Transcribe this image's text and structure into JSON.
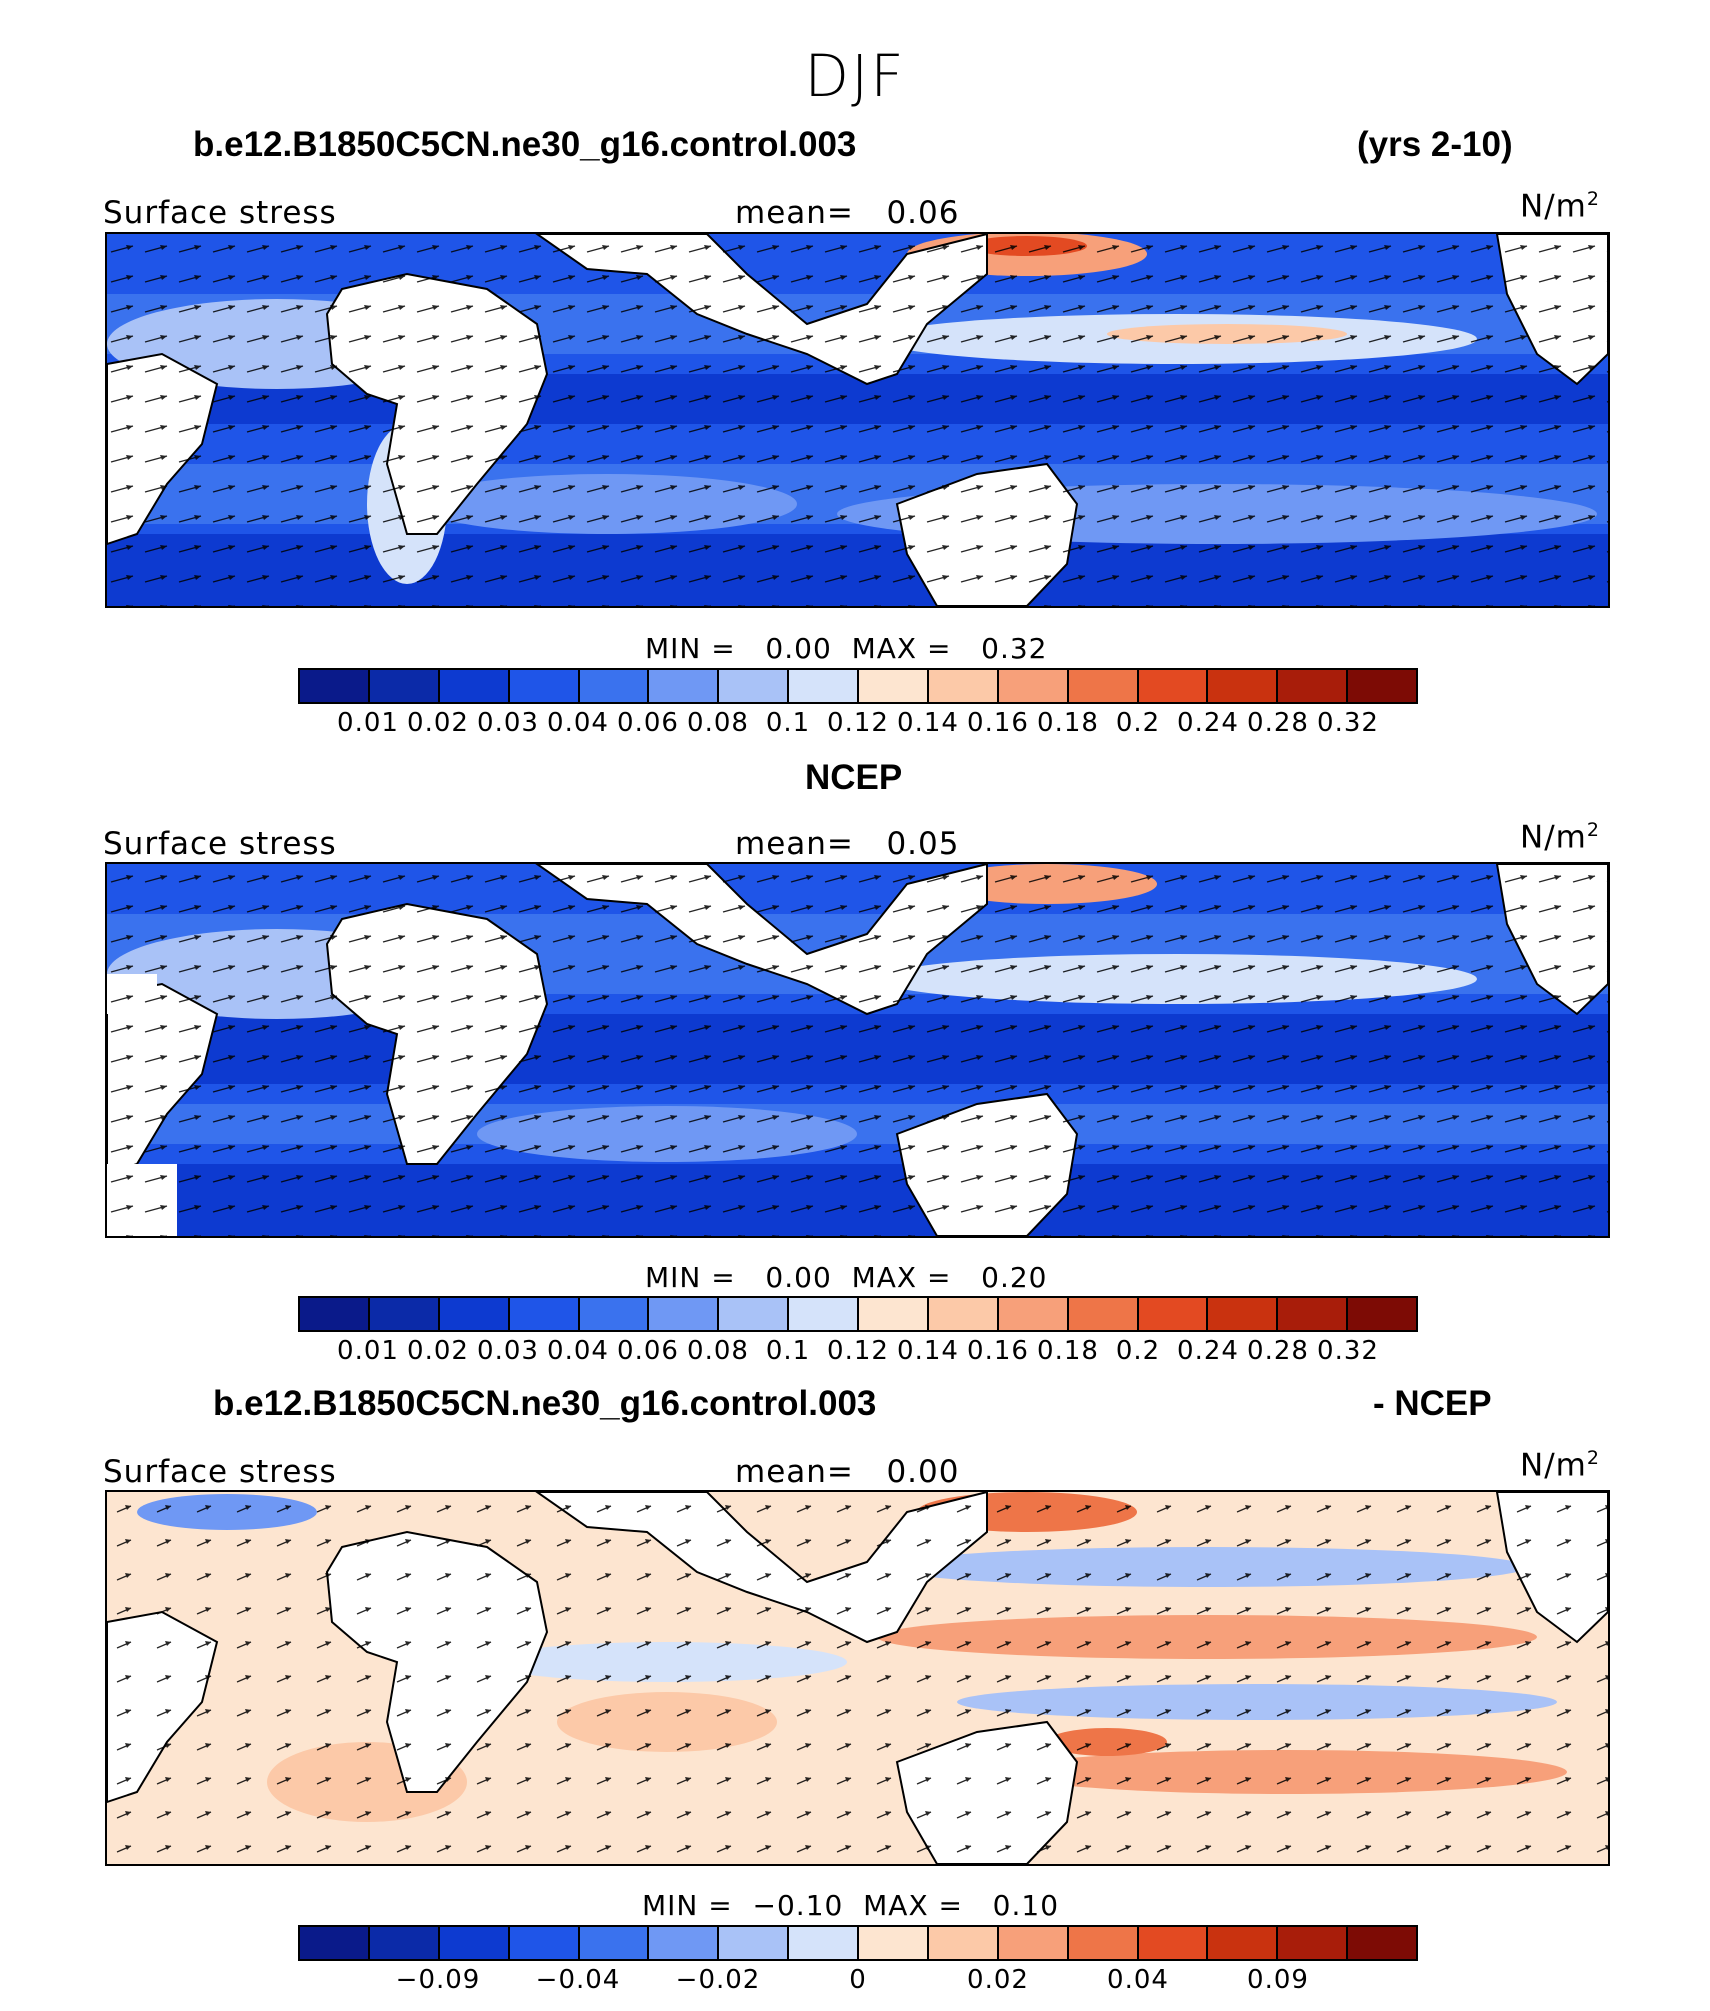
{
  "title": "DJF",
  "panel1": {
    "case_label": "b.e12.B1850C5CN.ne30_g16.control.003",
    "years": "(yrs 2-10)",
    "field": "Surface stress",
    "mean_label": "mean=   0.06",
    "units_base": "N/m",
    "units_exp": "2",
    "minmax": "MIN =   0.00  MAX =   0.32"
  },
  "panel2": {
    "case_label": "NCEP",
    "field": "Surface stress",
    "mean_label": "mean=   0.05",
    "units_base": "N/m",
    "units_exp": "2",
    "minmax": "MIN =   0.00  MAX =   0.20"
  },
  "panel3": {
    "case_label": "b.e12.B1850C5CN.ne30_g16.control.003",
    "suffix": "- NCEP",
    "field": "Surface stress",
    "mean_label": "mean=   0.00",
    "units_base": "N/m",
    "units_exp": "2",
    "minmax": "MIN =  −0.10  MAX =   0.10"
  },
  "colorbar_abs": {
    "colors": [
      "#0a1a8a",
      "#0b2aa8",
      "#0d3ad0",
      "#1f55e8",
      "#3a72ee",
      "#6f98f4",
      "#a9c2f7",
      "#d5e3fa",
      "#fde5d0",
      "#fcc9a8",
      "#f7a07a",
      "#ee7548",
      "#e34a22",
      "#c9320f",
      "#a81d0a",
      "#7d0b05"
    ],
    "ticks": [
      "0.01",
      "0.02",
      "0.03",
      "0.04",
      "0.06",
      "0.08",
      "0.1",
      "0.12",
      "0.14",
      "0.16",
      "0.18",
      "0.2",
      "0.24",
      "0.28",
      "0.32"
    ]
  },
  "colorbar_diff": {
    "colors": [
      "#0a1a8a",
      "#0b2aa8",
      "#0d3ad0",
      "#1f55e8",
      "#3a72ee",
      "#6f98f4",
      "#a9c2f7",
      "#d5e3fa",
      "#fde5d0",
      "#fcc9a8",
      "#f7a07a",
      "#ee7548",
      "#e34a22",
      "#c9320f",
      "#a81d0a",
      "#7d0b05"
    ],
    "ticks": [
      "−0.09",
      "−0.04",
      "−0.02",
      "0",
      "0.02",
      "0.04",
      "0.09"
    ],
    "tick_boundaries": [
      2,
      4,
      6,
      8,
      10,
      12,
      14
    ]
  }
}
